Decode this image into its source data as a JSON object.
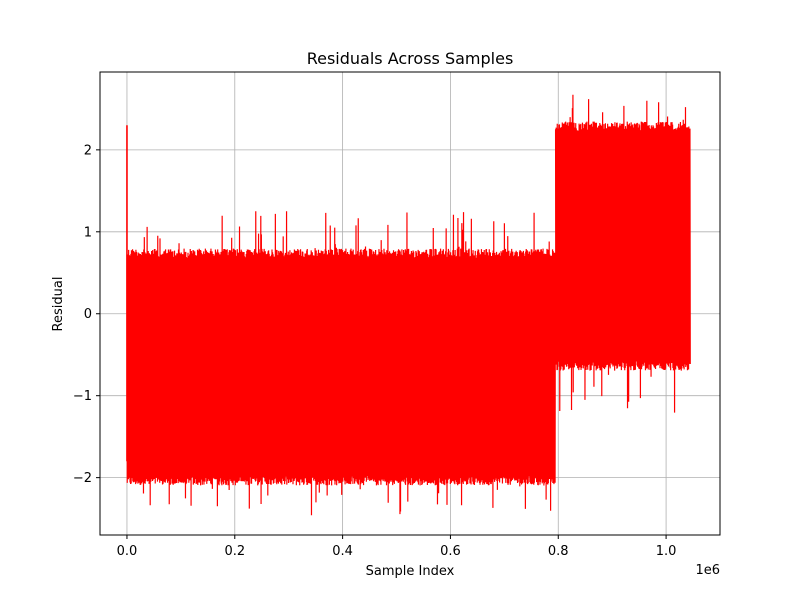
{
  "chart_data": {
    "type": "line",
    "title": "Residuals Across Samples",
    "xlabel": "Sample Index",
    "ylabel": "Residual",
    "x_offset_label": "1e6",
    "xlim": [
      -50000,
      1100000
    ],
    "ylim": [
      -2.7,
      2.95
    ],
    "x_ticks": [
      0,
      200000,
      400000,
      600000,
      800000,
      1000000
    ],
    "x_tick_labels": [
      "0.0",
      "0.2",
      "0.4",
      "0.6",
      "0.8",
      "1.0"
    ],
    "y_ticks": [
      -2,
      -1,
      0,
      1,
      2
    ],
    "y_tick_labels": [
      "−2",
      "−1",
      "0",
      "1",
      "2"
    ],
    "grid": true,
    "series": [
      {
        "color": "#ff0000",
        "segments": [
          {
            "x_start": 0,
            "x_end": 795000,
            "band_min": -2.1,
            "band_max": 0.8,
            "spike_min": -2.47,
            "spike_max": 1.27
          },
          {
            "x_start": 795000,
            "x_end": 1045000,
            "band_min": -0.7,
            "band_max": 2.35,
            "spike_min": -1.22,
            "spike_max": 2.72
          }
        ],
        "initial_spike": {
          "x": 0,
          "y_max": 2.3,
          "y_min": -1.8
        }
      }
    ]
  }
}
